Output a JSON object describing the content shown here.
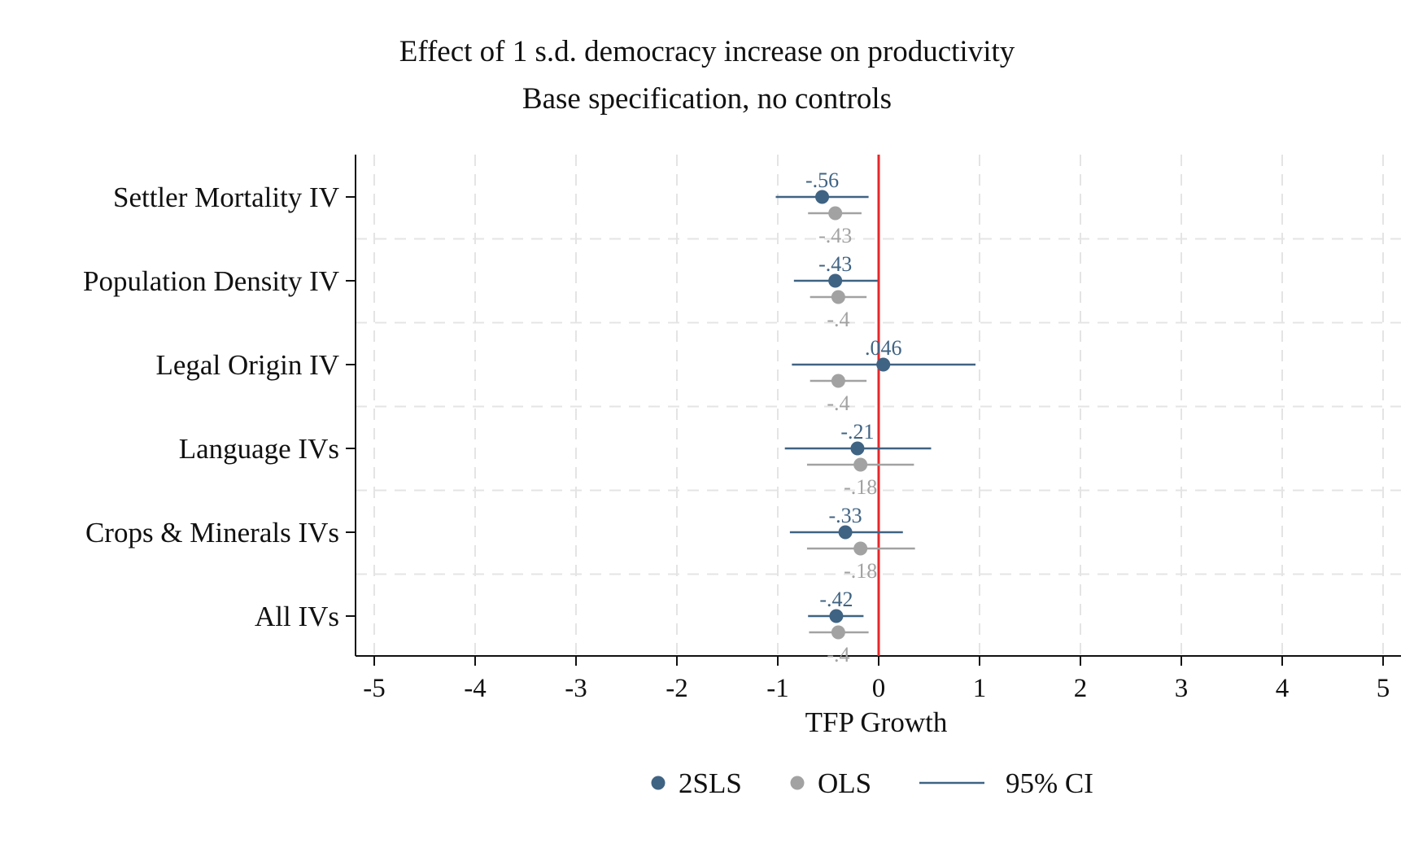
{
  "chart_data": {
    "type": "scatter",
    "title": "Effect of 1 s.d. democracy increase on productivity",
    "subtitle": "Base specification, no controls",
    "xlabel": "TFP Growth",
    "ylabel": "",
    "xlim": [
      -5,
      5
    ],
    "xticks": [
      -5,
      -4,
      -3,
      -2,
      -1,
      0,
      1,
      2,
      3,
      4,
      5
    ],
    "xtick_labels": [
      "-5",
      "-4",
      "-3",
      "-2",
      "-1",
      "0",
      "1",
      "2",
      "3",
      "4",
      "5"
    ],
    "grid": true,
    "reference_line": {
      "x": 0,
      "color": "#e8262b"
    },
    "categories": [
      "Settler Mortality IV",
      "Population Density IV",
      "Legal Origin IV",
      "Language IVs",
      "Crops & Minerals IVs",
      "All IVs"
    ],
    "series": [
      {
        "name": "2SLS",
        "color": "#3f6383",
        "points": [
          {
            "estimate": -0.56,
            "ci": [
              -1.02,
              -0.1
            ],
            "label": "-.56"
          },
          {
            "estimate": -0.43,
            "ci": [
              -0.84,
              -0.01
            ],
            "label": "-.43"
          },
          {
            "estimate": 0.046,
            "ci": [
              -0.86,
              0.96
            ],
            "label": ".046"
          },
          {
            "estimate": -0.21,
            "ci": [
              -0.93,
              0.52
            ],
            "label": "-.21"
          },
          {
            "estimate": -0.33,
            "ci": [
              -0.88,
              0.24
            ],
            "label": "-.33"
          },
          {
            "estimate": -0.42,
            "ci": [
              -0.7,
              -0.15
            ],
            "label": "-.42"
          }
        ]
      },
      {
        "name": "OLS",
        "color": "#a2a2a2",
        "points": [
          {
            "estimate": -0.43,
            "ci": [
              -0.7,
              -0.17
            ],
            "label": "-.43"
          },
          {
            "estimate": -0.4,
            "ci": [
              -0.68,
              -0.12
            ],
            "label": "-.4"
          },
          {
            "estimate": -0.4,
            "ci": [
              -0.68,
              -0.12
            ],
            "label": "-.4"
          },
          {
            "estimate": -0.18,
            "ci": [
              -0.71,
              0.35
            ],
            "label": "-.18"
          },
          {
            "estimate": -0.18,
            "ci": [
              -0.71,
              0.36
            ],
            "label": "-.18"
          },
          {
            "estimate": -0.4,
            "ci": [
              -0.69,
              -0.1
            ],
            "label": "-.4"
          }
        ]
      }
    ],
    "legend": {
      "position": "bottom",
      "items": [
        {
          "label": "2SLS",
          "marker": "dot",
          "color": "#3f6383"
        },
        {
          "label": "OLS",
          "marker": "dot",
          "color": "#a2a2a2"
        },
        {
          "label": "95% CI",
          "marker": "line",
          "color": "#3f6383"
        }
      ]
    }
  }
}
